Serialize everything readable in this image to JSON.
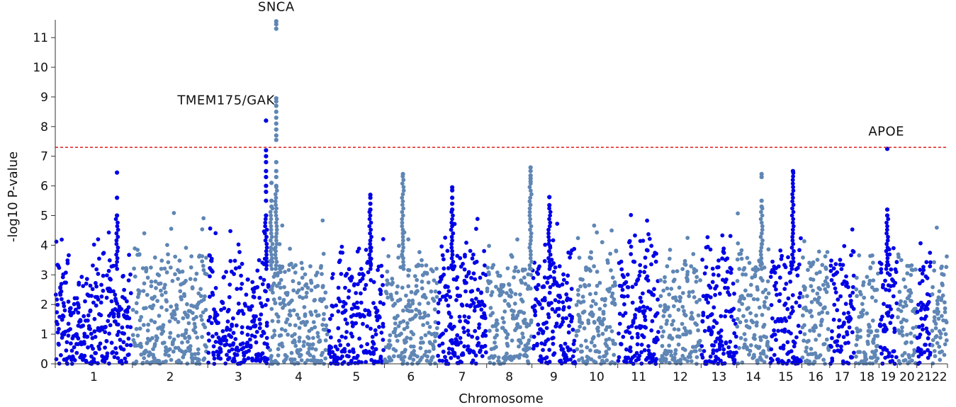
{
  "chart_data": {
    "type": "scatter",
    "title": "",
    "xlabel": "Chromosome",
    "ylabel": "-log10 P-value",
    "ylim": [
      0,
      11.6
    ],
    "yticks": [
      0,
      1,
      2,
      3,
      4,
      5,
      6,
      7,
      8,
      9,
      10,
      11
    ],
    "grid": false,
    "legend": "none",
    "colors": {
      "odd": "#0000e6",
      "even": "#5f86b5",
      "threshold": "#e03030"
    },
    "threshold": 7.3,
    "chromosomes": [
      {
        "label": "1",
        "length": 249,
        "max": 6.45
      },
      {
        "label": "2",
        "length": 243,
        "max": 5.8
      },
      {
        "label": "3",
        "length": 198,
        "max": 8.2
      },
      {
        "label": "4",
        "length": 191,
        "max": 11.55
      },
      {
        "label": "5",
        "length": 181,
        "max": 5.7
      },
      {
        "label": "6",
        "length": 171,
        "max": 6.4
      },
      {
        "label": "7",
        "length": 159,
        "max": 5.95
      },
      {
        "label": "8",
        "length": 146,
        "max": 6.62
      },
      {
        "label": "9",
        "length": 141,
        "max": 5.62
      },
      {
        "label": "10",
        "length": 136,
        "max": 4.7
      },
      {
        "label": "11",
        "length": 135,
        "max": 5.15
      },
      {
        "label": "12",
        "length": 134,
        "max": 5.3
      },
      {
        "label": "13",
        "length": 115,
        "max": 4.8
      },
      {
        "label": "14",
        "length": 107,
        "max": 6.4
      },
      {
        "label": "15",
        "length": 103,
        "max": 6.5
      },
      {
        "label": "16",
        "length": 90,
        "max": 5.3
      },
      {
        "label": "17",
        "length": 81,
        "max": 4.75
      },
      {
        "label": "18",
        "length": 78,
        "max": 4.65
      },
      {
        "label": "19",
        "length": 59,
        "max": 7.25
      },
      {
        "label": "20",
        "length": 63,
        "max": 4.0
      },
      {
        "label": "21",
        "length": 48,
        "max": 4.2
      },
      {
        "label": "22",
        "length": 51,
        "max": 4.95
      }
    ],
    "peaks": [
      {
        "chr": 1,
        "pos": 0.8,
        "values": [
          6.45,
          5.6,
          5.0
        ]
      },
      {
        "chr": 3,
        "pos": 0.95,
        "values": [
          8.2,
          7.2,
          7.0,
          6.8,
          6.5,
          6.3,
          6.0,
          5.8,
          5.5,
          5.0
        ]
      },
      {
        "chr": 4,
        "pos": 0.12,
        "values": [
          11.55,
          11.45,
          11.3,
          8.95,
          8.85,
          8.7,
          8.5,
          8.3,
          8.1,
          7.9,
          7.7,
          7.55,
          6.8,
          6.5,
          6.3,
          6.0
        ]
      },
      {
        "chr": 4,
        "pos": 0.04,
        "values": [
          6.1,
          5.5,
          5.3
        ]
      },
      {
        "chr": 5,
        "pos": 0.75,
        "values": [
          5.7,
          5.6,
          5.4,
          5.2
        ]
      },
      {
        "chr": 6,
        "pos": 0.35,
        "values": [
          6.4
        ]
      },
      {
        "chr": 7,
        "pos": 0.3,
        "values": [
          5.95,
          5.85,
          5.6,
          5.4,
          5.2
        ]
      },
      {
        "chr": 8,
        "pos": 0.97,
        "values": [
          6.62,
          6.5,
          6.35,
          6.25,
          6.15
        ]
      },
      {
        "chr": 9,
        "pos": 0.4,
        "values": [
          5.62,
          5.35
        ]
      },
      {
        "chr": 14,
        "pos": 0.75,
        "values": [
          6.4,
          6.3,
          5.5,
          5.3
        ]
      },
      {
        "chr": 15,
        "pos": 0.72,
        "values": [
          6.5
        ]
      },
      {
        "chr": 19,
        "pos": 0.45,
        "values": [
          7.25,
          5.2,
          5.0
        ]
      }
    ],
    "annotations": [
      {
        "text": "SNCA",
        "chr": 4,
        "pos": 0.12,
        "y": 11.9
      },
      {
        "text": "TMEM175/GAK",
        "chr": 3,
        "pos": 0.3,
        "y": 8.75
      },
      {
        "text": "APOE",
        "chr": 19,
        "pos": 0.4,
        "y": 7.7
      }
    ]
  }
}
